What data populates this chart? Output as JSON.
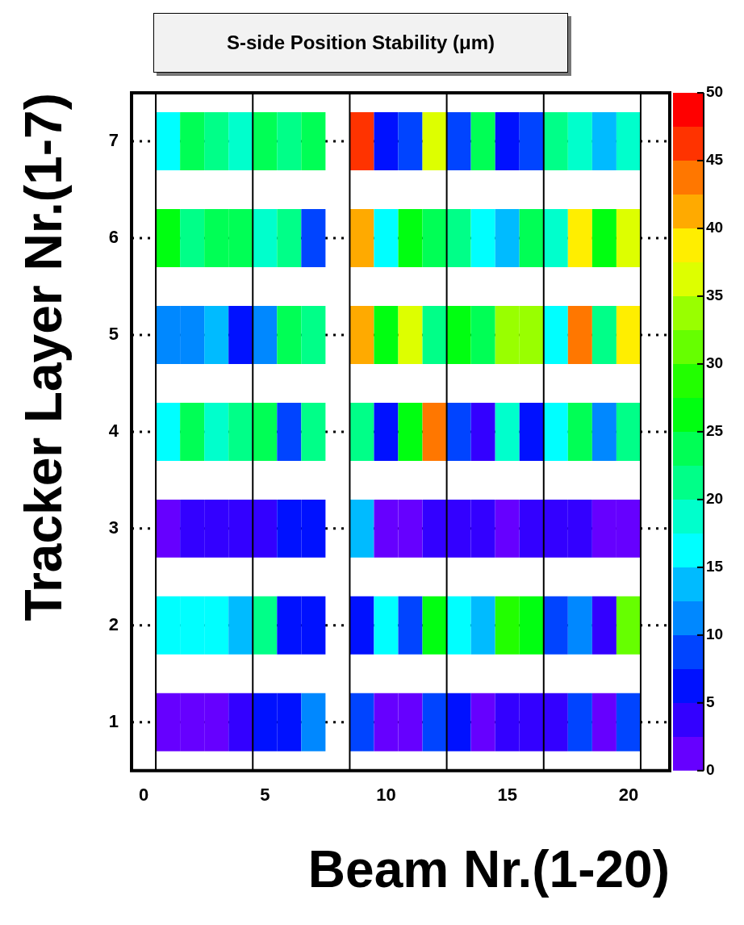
{
  "chart_data": {
    "type": "heatmap",
    "title": "S-side Position Stability (μm)",
    "xlabel": "Beam Nr.(1-20)",
    "ylabel": "Tracker Layer Nr.(1-7)",
    "x": [
      1,
      2,
      3,
      4,
      5,
      6,
      7,
      8,
      9,
      10,
      11,
      12,
      13,
      14,
      15,
      16,
      17,
      18,
      19,
      20
    ],
    "y_categories": [
      "7",
      "6",
      "5",
      "4",
      "3",
      "2",
      "1"
    ],
    "cells": [
      [
        16,
        24,
        21,
        19,
        24,
        21,
        24,
        null,
        46,
        6,
        9,
        36,
        9,
        24,
        6,
        9,
        21,
        19,
        14,
        19
      ],
      [
        26,
        21,
        24,
        24,
        19,
        21,
        9,
        null,
        41,
        16,
        26,
        24,
        21,
        16,
        14,
        24,
        19,
        39,
        26,
        36
      ],
      [
        11,
        11,
        14,
        6,
        11,
        24,
        21,
        null,
        41,
        26,
        36,
        21,
        26,
        24,
        34,
        34,
        16,
        44,
        21,
        39
      ],
      [
        16,
        24,
        19,
        21,
        24,
        9,
        21,
        null,
        21,
        6,
        26,
        44,
        9,
        4,
        19,
        6,
        16,
        24,
        11,
        21
      ],
      [
        1,
        4,
        4,
        4,
        4,
        6,
        6,
        null,
        14,
        1,
        1,
        4,
        4,
        4,
        1,
        4,
        4,
        4,
        1,
        1
      ],
      [
        16,
        16,
        16,
        14,
        21,
        6,
        6,
        null,
        6,
        16,
        9,
        26,
        16,
        14,
        29,
        26,
        9,
        11,
        4,
        31
      ],
      [
        1,
        1,
        1,
        4,
        6,
        6,
        11,
        null,
        9,
        1,
        1,
        9,
        6,
        1,
        4,
        4,
        4,
        9,
        1,
        9
      ]
    ],
    "colors": [
      "#6600ff",
      "#3300ff",
      "#0011ff",
      "#0044ff",
      "#0088ff",
      "#00bbff",
      "#00ffff",
      "#00ffcc",
      "#00ff88",
      "#00ff55",
      "#00ff11",
      "#22ff00",
      "#66ff00",
      "#99ff00",
      "#ddff00",
      "#ffee00",
      "#ffaa00",
      "#ff7700",
      "#ff3300",
      "#ff0000"
    ],
    "clim": [
      0,
      50
    ],
    "cticks": [
      0,
      5,
      10,
      15,
      20,
      25,
      30,
      35,
      40,
      45,
      50
    ],
    "xlim": [
      -0.5,
      21.7
    ],
    "xticks": [
      0,
      5,
      10,
      15,
      20
    ],
    "grid": "y",
    "ref_lines": [
      {
        "axis": "x",
        "value": 0.5,
        "color": "#000000"
      },
      {
        "axis": "x",
        "value": 4.5,
        "color": "#000000"
      },
      {
        "axis": "x",
        "value": 8.5,
        "color": "#000000"
      },
      {
        "axis": "x",
        "value": 12.5,
        "color": "#000000"
      },
      {
        "axis": "x",
        "value": 16.5,
        "color": "#000000"
      },
      {
        "axis": "x",
        "value": 20.5,
        "color": "#000000"
      }
    ]
  }
}
